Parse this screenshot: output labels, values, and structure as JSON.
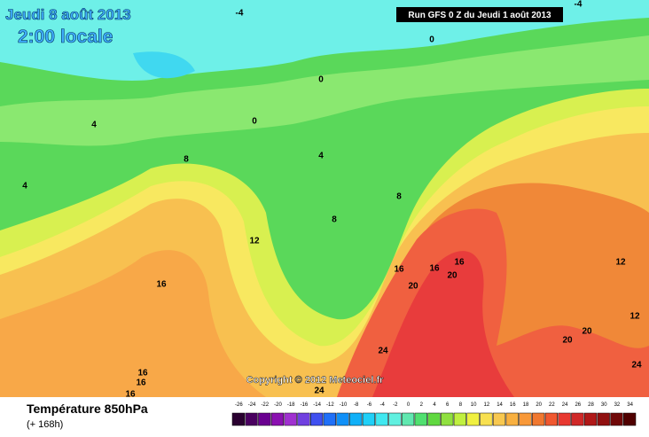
{
  "header": {
    "date": "Jeudi 8 août 2013",
    "time": "2:00 locale",
    "run": "Run GFS 0 Z du Jeudi 1 août 2013"
  },
  "map": {
    "copyright": "Copyright © 2012 Meteociel.fr",
    "contour_labels": [
      "-4",
      "-4",
      "0",
      "0",
      "0",
      "4",
      "4",
      "4",
      "8",
      "8",
      "8",
      "12",
      "16",
      "16",
      "16",
      "16",
      "20",
      "20",
      "24",
      "24",
      "16",
      "16",
      "16",
      "20",
      "20",
      "24",
      "12",
      "12"
    ]
  },
  "footer": {
    "title": "Température 850hPa",
    "subtitle": "(+ 168h)"
  },
  "legend": {
    "labels": [
      -26,
      -24,
      -22,
      -20,
      -18,
      -16,
      -14,
      -12,
      -10,
      -8,
      -6,
      -4,
      -2,
      0,
      2,
      4,
      6,
      8,
      10,
      12,
      14,
      16,
      18,
      20,
      22,
      24,
      26,
      28,
      30,
      32,
      34
    ],
    "colors": [
      "#2a0030",
      "#4a0060",
      "#6a0090",
      "#8a10b0",
      "#a030d0",
      "#7040e0",
      "#4050f0",
      "#2070f8",
      "#1090f8",
      "#10b0f8",
      "#20d0f8",
      "#40e8f0",
      "#60f0e0",
      "#60e8b0",
      "#50e070",
      "#60d840",
      "#90e040",
      "#c0f040",
      "#f0f040",
      "#f8e050",
      "#f8c850",
      "#f8b040",
      "#f89838",
      "#f07830",
      "#f05830",
      "#e83830",
      "#d02828",
      "#b01818",
      "#901010",
      "#700808",
      "#500000"
    ]
  }
}
